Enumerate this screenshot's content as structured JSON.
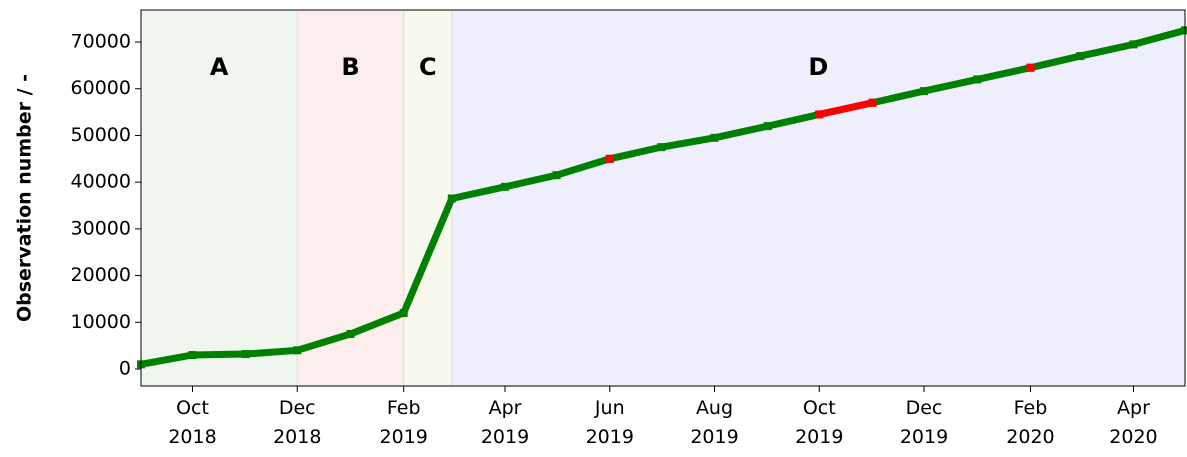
{
  "chart_data": {
    "type": "line",
    "ylabel": "Observation number / -",
    "x": [
      "2018-09",
      "2018-10",
      "2018-11",
      "2018-12",
      "2019-01",
      "2019-02",
      "2019-03",
      "2019-04",
      "2019-05",
      "2019-06",
      "2019-07",
      "2019-08",
      "2019-09",
      "2019-10",
      "2019-11",
      "2019-12",
      "2020-01",
      "2020-02",
      "2020-03",
      "2020-04",
      "2020-05"
    ],
    "series": [
      {
        "color": "#008000",
        "values": [
          1000,
          3000,
          3200,
          4000,
          7500,
          12000,
          36500,
          39000,
          41500,
          45000,
          47500,
          49500,
          52000,
          54500,
          57000,
          59500,
          62000,
          64500,
          67000,
          69500,
          72500
        ]
      },
      {
        "color": "#ff0000",
        "values": [
          null,
          null,
          null,
          null,
          null,
          null,
          null,
          null,
          null,
          45000,
          null,
          null,
          null,
          54500,
          57000,
          null,
          null,
          64500,
          null,
          null,
          null
        ]
      }
    ],
    "regions": [
      {
        "label": "A",
        "start": "2018-09",
        "end": "2018-12",
        "color": "#eef6ee"
      },
      {
        "label": "B",
        "start": "2018-12",
        "end": "2019-02",
        "color": "#fdeeee"
      },
      {
        "label": "C",
        "start": "2019-02",
        "end": "2019-03",
        "color": "#f8f8ee"
      },
      {
        "label": "D",
        "start": "2019-03",
        "end": "2020-05",
        "color": "#eeeefc"
      }
    ],
    "xlim": [
      "2018-09",
      "2020-05"
    ],
    "xticks": [
      {
        "value": "2018-10",
        "label": "Oct 2018"
      },
      {
        "value": "2018-12",
        "label": "Dec 2018"
      },
      {
        "value": "2019-02",
        "label": "Feb 2019"
      },
      {
        "value": "2019-04",
        "label": "Apr 2019"
      },
      {
        "value": "2019-06",
        "label": "Jun 2019"
      },
      {
        "value": "2019-08",
        "label": "Aug 2019"
      },
      {
        "value": "2019-10",
        "label": "Oct 2019"
      },
      {
        "value": "2019-12",
        "label": "Dec 2019"
      },
      {
        "value": "2020-02",
        "label": "Feb 2020"
      },
      {
        "value": "2020-04",
        "label": "Apr 2020"
      }
    ],
    "ylim": [
      -3640,
      76860
    ],
    "yticks": [
      0,
      10000,
      20000,
      30000,
      40000,
      50000,
      60000,
      70000
    ]
  }
}
